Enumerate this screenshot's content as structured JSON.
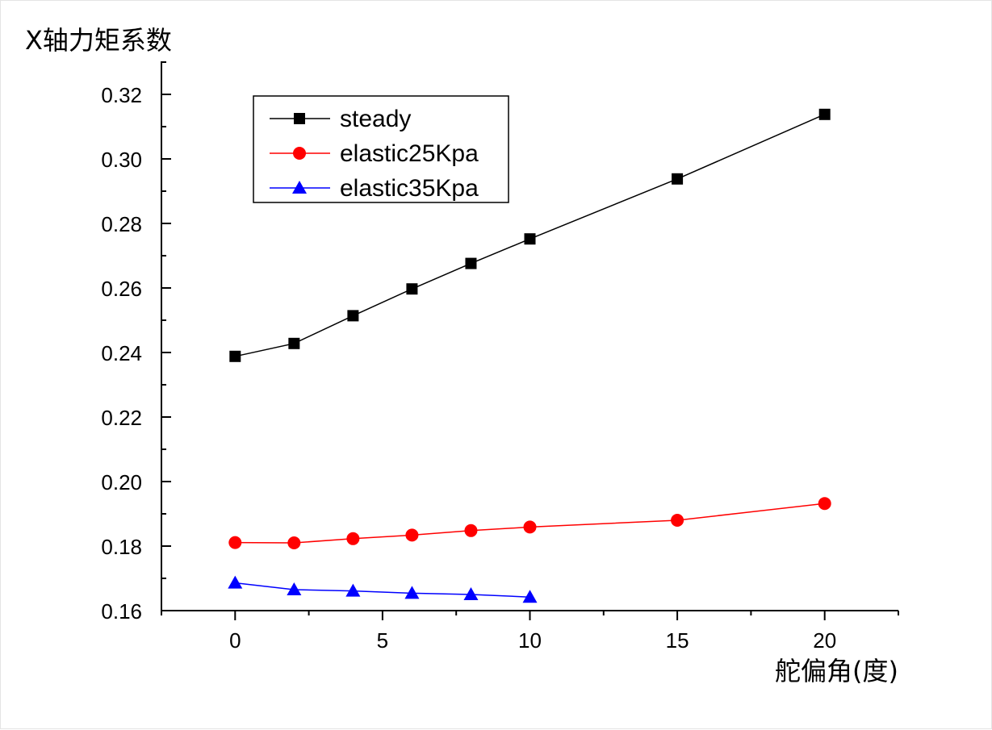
{
  "chart_data": {
    "type": "line",
    "title": "",
    "ylabel": "X轴力矩系数",
    "xlabel": "舵偏角(度)",
    "xlim": [
      -2.5,
      22.5
    ],
    "ylim": [
      0.16,
      0.33
    ],
    "x_ticks": [
      0,
      5,
      10,
      15,
      20
    ],
    "x_tick_labels": [
      "0",
      "5",
      "10",
      "15",
      "20"
    ],
    "y_ticks": [
      0.16,
      0.18,
      0.2,
      0.22,
      0.24,
      0.26,
      0.28,
      0.3,
      0.32
    ],
    "y_tick_labels": [
      "0.16",
      "0.18",
      "0.20",
      "0.22",
      "0.24",
      "0.26",
      "0.28",
      "0.30",
      "0.32"
    ],
    "grid": false,
    "legend_position": "top-left",
    "series": [
      {
        "name": "steady",
        "color": "#000000",
        "marker": "square",
        "x": [
          0,
          2,
          4,
          6,
          8,
          10,
          15,
          20
        ],
        "y": [
          0.2388,
          0.2428,
          0.2514,
          0.2597,
          0.2676,
          0.2752,
          0.2938,
          0.3138
        ]
      },
      {
        "name": "elastic25Kpa",
        "color": "#ff0000",
        "marker": "circle",
        "x": [
          0,
          2,
          4,
          6,
          8,
          10,
          15,
          20
        ],
        "y": [
          0.1811,
          0.181,
          0.1823,
          0.1834,
          0.1848,
          0.1859,
          0.188,
          0.1932
        ]
      },
      {
        "name": "elastic35Kpa",
        "color": "#0000ff",
        "marker": "triangle",
        "x": [
          0,
          2,
          4,
          6,
          8,
          10
        ],
        "y": [
          0.1686,
          0.1665,
          0.1661,
          0.1654,
          0.165,
          0.1642
        ]
      }
    ]
  }
}
